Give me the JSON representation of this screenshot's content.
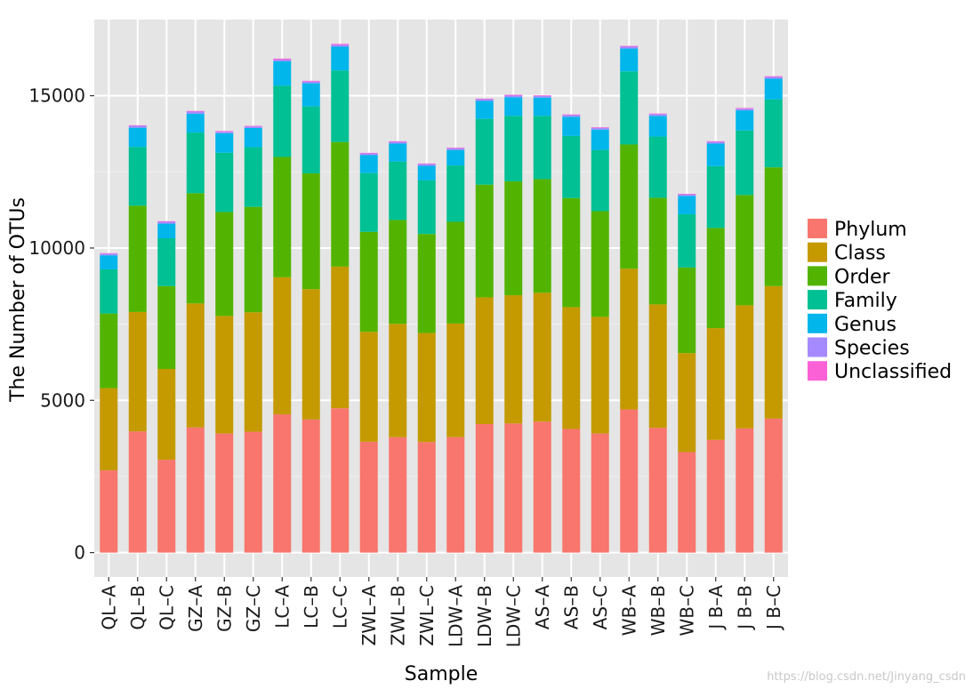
{
  "chart_data": {
    "type": "bar",
    "stacked": true,
    "xlabel": "Sample",
    "ylabel": "The Number of OTUs",
    "ylim": [
      -800,
      17500
    ],
    "yticks": [
      0,
      5000,
      10000,
      15000
    ],
    "grid": true,
    "legend_position": "right",
    "categories": [
      "QL–A",
      "QL–B",
      "QL–C",
      "GZ–A",
      "GZ–B",
      "GZ–C",
      "LC–A",
      "LC–B",
      "LC–C",
      "ZWL–A",
      "ZWL–B",
      "ZWL–C",
      "LDW–A",
      "LDW–B",
      "LDW–C",
      "AS–A",
      "AS–B",
      "AS–C",
      "WB–A",
      "WB–B",
      "WB–C",
      "J B–A",
      "J B–B",
      "J B–C"
    ],
    "series": [
      {
        "name": "Phylum",
        "color": "#F8766D",
        "values": [
          2700,
          3980,
          3050,
          4110,
          3910,
          3970,
          4540,
          4370,
          4740,
          3640,
          3790,
          3630,
          3790,
          4220,
          4240,
          4300,
          4060,
          3910,
          4700,
          4100,
          3300,
          3700,
          4080,
          4400
        ]
      },
      {
        "name": "Class",
        "color": "#C49A00",
        "values": [
          2700,
          3920,
          2980,
          4070,
          3860,
          3920,
          4500,
          4280,
          4650,
          3610,
          3720,
          3580,
          3730,
          4160,
          4210,
          4230,
          4000,
          3830,
          4620,
          4050,
          3250,
          3670,
          4040,
          4350
        ]
      },
      {
        "name": "Order",
        "color": "#53B400",
        "values": [
          2450,
          3490,
          2720,
          3620,
          3410,
          3460,
          3950,
          3800,
          4090,
          3280,
          3410,
          3250,
          3340,
          3700,
          3740,
          3730,
          3580,
          3470,
          4080,
          3500,
          2810,
          3290,
          3620,
          3900
        ]
      },
      {
        "name": "Family",
        "color": "#00C094",
        "values": [
          1450,
          1930,
          1570,
          1990,
          1950,
          1960,
          2340,
          2200,
          2350,
          1930,
          1920,
          1760,
          1850,
          2160,
          2150,
          2080,
          2040,
          2010,
          2400,
          2010,
          1750,
          2030,
          2120,
          2230
        ]
      },
      {
        "name": "Genus",
        "color": "#00B6EB",
        "values": [
          460,
          630,
          480,
          620,
          640,
          630,
          800,
          760,
          780,
          590,
          590,
          480,
          510,
          590,
          610,
          600,
          630,
          670,
          750,
          680,
          600,
          740,
          660,
          680
        ]
      },
      {
        "name": "Species",
        "color": "#A58AFF",
        "values": [
          55,
          60,
          60,
          70,
          50,
          50,
          60,
          55,
          60,
          55,
          55,
          55,
          55,
          55,
          55,
          55,
          55,
          55,
          60,
          55,
          50,
          55,
          55,
          55
        ]
      },
      {
        "name": "Unclassified",
        "color": "#FB61D7",
        "values": [
          15,
          20,
          20,
          20,
          20,
          20,
          30,
          25,
          30,
          20,
          20,
          20,
          20,
          20,
          25,
          20,
          20,
          20,
          25,
          20,
          20,
          20,
          20,
          25
        ]
      }
    ]
  },
  "watermark": "https://blog.csdn.net/Jinyang_csdn"
}
